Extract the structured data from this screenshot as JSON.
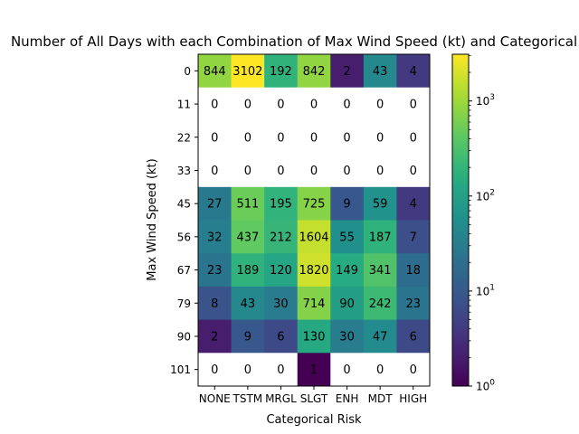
{
  "chart_data": {
    "type": "heatmap",
    "title": "Number of All Days with each Combination of Max Wind Speed (kt) and Categorical Risk",
    "xlabel": "Categorical Risk",
    "ylabel": "Max Wind Speed (kt)",
    "x_categories": [
      "NONE",
      "TSTM",
      "MRGL",
      "SLGT",
      "ENH",
      "MDT",
      "HIGH"
    ],
    "y_categories": [
      "0",
      "11",
      "22",
      "33",
      "45",
      "56",
      "67",
      "79",
      "90",
      "101"
    ],
    "values": [
      [
        844,
        3102,
        192,
        842,
        2,
        43,
        4
      ],
      [
        0,
        0,
        0,
        0,
        0,
        0,
        0
      ],
      [
        0,
        0,
        0,
        0,
        0,
        0,
        0
      ],
      [
        0,
        0,
        0,
        0,
        0,
        0,
        0
      ],
      [
        27,
        511,
        195,
        725,
        9,
        59,
        4
      ],
      [
        32,
        437,
        212,
        1604,
        55,
        187,
        7
      ],
      [
        23,
        189,
        120,
        1820,
        149,
        341,
        18
      ],
      [
        8,
        43,
        30,
        714,
        90,
        242,
        23
      ],
      [
        2,
        9,
        6,
        130,
        30,
        47,
        6
      ],
      [
        0,
        0,
        0,
        1,
        0,
        0,
        0
      ]
    ],
    "color_scale": "viridis",
    "log_scale": true,
    "zero_cells": "white",
    "colorbar": {
      "range": [
        1,
        3102
      ],
      "tick_values": [
        1,
        10,
        100,
        1000
      ],
      "tick_labels": [
        "10^0",
        "10^1",
        "10^2",
        "10^3"
      ]
    }
  }
}
